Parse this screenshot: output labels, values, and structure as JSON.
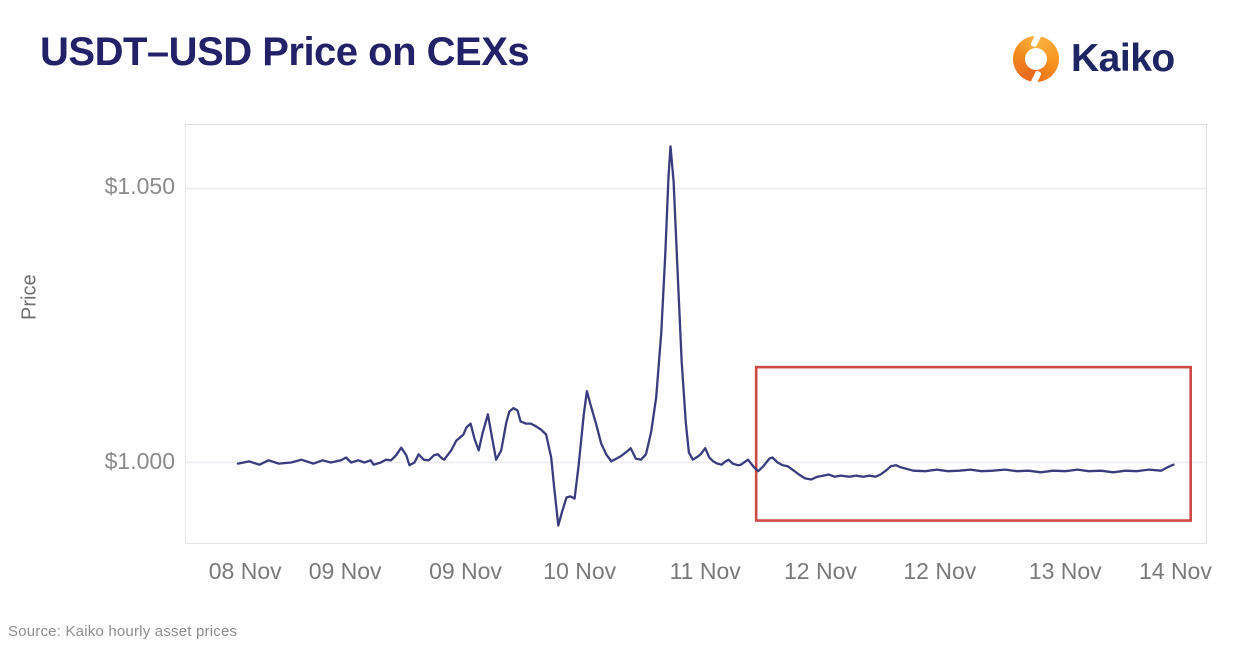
{
  "header": {
    "title": "USDT–USD Price on CEXs",
    "brand_name": "Kaiko"
  },
  "footer": {
    "source": "Source: Kaiko hourly asset prices"
  },
  "colors": {
    "title": "#232168",
    "brand": "#1d2562",
    "line": "#3a3d7d",
    "annotation_box": "#cd4a47",
    "gridline": "#ededf2",
    "axis_text": "#8b8b8b"
  },
  "chart_data": {
    "type": "line",
    "title": "USDT–USD Price on CEXs",
    "xlabel": "",
    "ylabel": "Price",
    "grid": "horizontal",
    "legend": "none",
    "ylim": [
      0.9853,
      1.0616
    ],
    "y_ticks": [
      {
        "label": "$1.050",
        "value": 1.05
      },
      {
        "label": "$1.000",
        "value": 1.0
      }
    ],
    "x_ticks": [
      {
        "label": "08 Nov",
        "pos": 0.059
      },
      {
        "label": "09 Nov",
        "pos": 0.157
      },
      {
        "label": "09 Nov",
        "pos": 0.275
      },
      {
        "label": "10 Nov",
        "pos": 0.387
      },
      {
        "label": "11 Nov",
        "pos": 0.51
      },
      {
        "label": "12 Nov",
        "pos": 0.623
      },
      {
        "label": "12 Nov",
        "pos": 0.74
      },
      {
        "label": "13 Nov",
        "pos": 0.863
      },
      {
        "label": "14 Nov",
        "pos": 0.971
      }
    ],
    "annotation_box": {
      "x0": 0.559,
      "x1": 0.985,
      "price_top": 1.0174,
      "price_bottom": 0.9894,
      "color": "#cd4a47"
    },
    "series": [
      {
        "name": "USDT-USD price",
        "color": "#3a3d7d",
        "points": [
          [
            0.051,
            0.9998
          ],
          [
            0.062,
            1.0002
          ],
          [
            0.072,
            0.9996
          ],
          [
            0.081,
            1.0004
          ],
          [
            0.091,
            0.9998
          ],
          [
            0.103,
            1.0
          ],
          [
            0.113,
            1.0005
          ],
          [
            0.125,
            0.9998
          ],
          [
            0.134,
            1.0004
          ],
          [
            0.142,
            1.0
          ],
          [
            0.152,
            1.0004
          ],
          [
            0.157,
            1.0009
          ],
          [
            0.162,
            1.0
          ],
          [
            0.169,
            1.0004
          ],
          [
            0.175,
            1.0
          ],
          [
            0.181,
            1.0004
          ],
          [
            0.184,
            0.9996
          ],
          [
            0.191,
            1.0
          ],
          [
            0.196,
            1.0005
          ],
          [
            0.201,
            1.0004
          ],
          [
            0.206,
            1.0013
          ],
          [
            0.211,
            1.0027
          ],
          [
            0.216,
            1.0013
          ],
          [
            0.219,
            0.9995
          ],
          [
            0.224,
            1.0
          ],
          [
            0.228,
            1.0015
          ],
          [
            0.233,
            1.0005
          ],
          [
            0.238,
            1.0004
          ],
          [
            0.243,
            1.0013
          ],
          [
            0.247,
            1.0015
          ],
          [
            0.25,
            1.0009
          ],
          [
            0.253,
            1.0005
          ],
          [
            0.26,
            1.0022
          ],
          [
            0.265,
            1.004
          ],
          [
            0.272,
            1.0051
          ],
          [
            0.275,
            1.0064
          ],
          [
            0.279,
            1.0071
          ],
          [
            0.283,
            1.0042
          ],
          [
            0.287,
            1.0022
          ],
          [
            0.291,
            1.0055
          ],
          [
            0.296,
            1.0088
          ],
          [
            0.3,
            1.0046
          ],
          [
            0.304,
            1.0005
          ],
          [
            0.309,
            1.0022
          ],
          [
            0.314,
            1.0073
          ],
          [
            0.317,
            1.0093
          ],
          [
            0.321,
            1.0099
          ],
          [
            0.325,
            1.0095
          ],
          [
            0.328,
            1.0075
          ],
          [
            0.333,
            1.0071
          ],
          [
            0.338,
            1.0071
          ],
          [
            0.343,
            1.0066
          ],
          [
            0.348,
            1.006
          ],
          [
            0.353,
            1.0051
          ],
          [
            0.358,
            1.0009
          ],
          [
            0.361,
            0.9954
          ],
          [
            0.365,
            0.9885
          ],
          [
            0.369,
            0.9912
          ],
          [
            0.373,
            0.9936
          ],
          [
            0.377,
            0.9938
          ],
          [
            0.381,
            0.9934
          ],
          [
            0.385,
            0.9996
          ],
          [
            0.39,
            1.0088
          ],
          [
            0.393,
            1.013
          ],
          [
            0.397,
            1.0103
          ],
          [
            0.402,
            1.0071
          ],
          [
            0.407,
            1.0035
          ],
          [
            0.412,
            1.0015
          ],
          [
            0.417,
            1.0002
          ],
          [
            0.422,
            1.0007
          ],
          [
            0.426,
            1.0011
          ],
          [
            0.431,
            1.0018
          ],
          [
            0.436,
            1.0026
          ],
          [
            0.441,
            1.0007
          ],
          [
            0.446,
            1.0005
          ],
          [
            0.451,
            1.0015
          ],
          [
            0.456,
            1.0055
          ],
          [
            0.461,
            1.0119
          ],
          [
            0.466,
            1.0238
          ],
          [
            0.47,
            1.0385
          ],
          [
            0.473,
            1.0522
          ],
          [
            0.475,
            1.0577
          ],
          [
            0.478,
            1.0513
          ],
          [
            0.482,
            1.0348
          ],
          [
            0.486,
            1.0183
          ],
          [
            0.49,
            1.0073
          ],
          [
            0.493,
            1.0018
          ],
          [
            0.497,
            1.0005
          ],
          [
            0.502,
            1.0011
          ],
          [
            0.505,
            1.0016
          ],
          [
            0.509,
            1.0026
          ],
          [
            0.513,
            1.0009
          ],
          [
            0.517,
            1.0002
          ],
          [
            0.521,
            0.9998
          ],
          [
            0.525,
            0.9996
          ],
          [
            0.529,
            1.0002
          ],
          [
            0.532,
            1.0005
          ],
          [
            0.536,
            0.9998
          ],
          [
            0.541,
            0.9995
          ],
          [
            0.544,
            0.9996
          ],
          [
            0.551,
            1.0005
          ],
          [
            0.557,
            0.9991
          ],
          [
            0.561,
            0.9984
          ],
          [
            0.566,
            0.9993
          ],
          [
            0.572,
            1.0007
          ],
          [
            0.575,
            1.0009
          ],
          [
            0.58,
            1.0
          ],
          [
            0.585,
            0.9995
          ],
          [
            0.59,
            0.9993
          ],
          [
            0.596,
            0.9985
          ],
          [
            0.601,
            0.9978
          ],
          [
            0.607,
            0.9971
          ],
          [
            0.613,
            0.9969
          ],
          [
            0.619,
            0.9974
          ],
          [
            0.625,
            0.9976
          ],
          [
            0.63,
            0.9978
          ],
          [
            0.636,
            0.9974
          ],
          [
            0.642,
            0.9976
          ],
          [
            0.65,
            0.9974
          ],
          [
            0.657,
            0.9976
          ],
          [
            0.664,
            0.9974
          ],
          [
            0.67,
            0.9976
          ],
          [
            0.676,
            0.9974
          ],
          [
            0.681,
            0.9978
          ],
          [
            0.686,
            0.9985
          ],
          [
            0.691,
            0.9993
          ],
          [
            0.696,
            0.9995
          ],
          [
            0.701,
            0.9991
          ],
          [
            0.713,
            0.9985
          ],
          [
            0.725,
            0.9984
          ],
          [
            0.736,
            0.9987
          ],
          [
            0.747,
            0.9984
          ],
          [
            0.758,
            0.9985
          ],
          [
            0.769,
            0.9987
          ],
          [
            0.78,
            0.9984
          ],
          [
            0.791,
            0.9985
          ],
          [
            0.803,
            0.9987
          ],
          [
            0.815,
            0.9984
          ],
          [
            0.826,
            0.9985
          ],
          [
            0.838,
            0.9982
          ],
          [
            0.85,
            0.9985
          ],
          [
            0.862,
            0.9984
          ],
          [
            0.874,
            0.9987
          ],
          [
            0.885,
            0.9984
          ],
          [
            0.897,
            0.9985
          ],
          [
            0.909,
            0.9982
          ],
          [
            0.921,
            0.9985
          ],
          [
            0.932,
            0.9984
          ],
          [
            0.944,
            0.9987
          ],
          [
            0.956,
            0.9985
          ],
          [
            0.962,
            0.9991
          ],
          [
            0.968,
            0.9996
          ]
        ]
      }
    ]
  }
}
